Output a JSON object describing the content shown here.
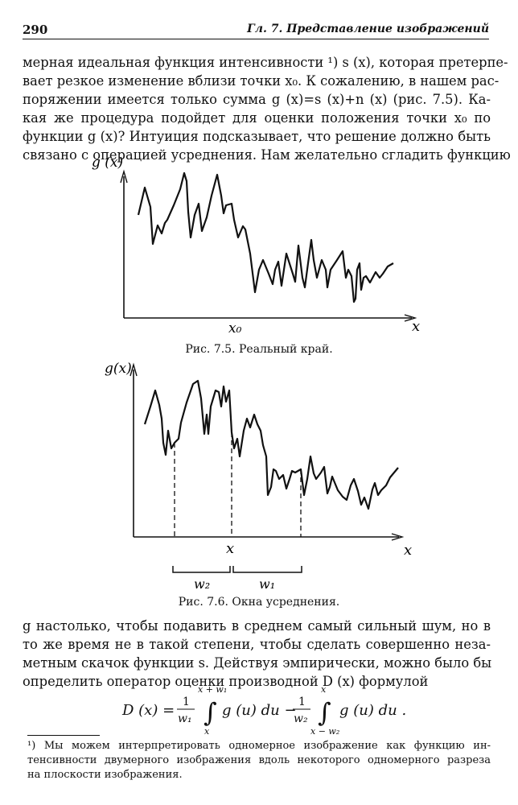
{
  "header": {
    "page_number": "290",
    "running_title": "Гл. 7. Представление изображений"
  },
  "paragraph1": [
    "мерная идеальная функция интенсивности ¹) s (x), которая претерпе-",
    "вает резкое изменение вблизи точки x₀. К сожалению, в нашем рас-",
    "поряжении имеется только сумма g (x)=s (x)+n (x) (рис. 7.5). Ка-",
    "кая же процедура подойдет для оценки положения точки x₀ по",
    "функции g (x)? Интуиция подсказывает, что решение должно быть",
    "связано с операцией усреднения. Нам желательно сгладить функцию"
  ],
  "figure75": {
    "y_label": "g (x)",
    "x_label": "x",
    "x0_label": "x₀",
    "caption": "Рис. 7.5. Реальный край."
  },
  "figure76": {
    "y_label": "g(x)",
    "x_label": "x",
    "x_mark_label": "x",
    "w2_label": "w₂",
    "w1_label": "w₁",
    "caption": "Рис. 7.6. Окна усреднения."
  },
  "paragraph2": [
    "g настолько, чтобы подавить в среднем самый сильный шум, но в",
    "то же время не в такой степени, чтобы сделать совершенно неза-",
    "метным скачок функции s. Действуя эмпирически, можно было бы",
    "определить оператор оценки производной D (x) формулой"
  ],
  "formula": {
    "lhs": "D (x) =",
    "frac1_num": "1",
    "frac1_den": "w₁",
    "int1_upper": "x + w₁",
    "int1_lower": "x",
    "integrand1": "g (u) du −",
    "frac2_num": "1",
    "frac2_den": "w₂",
    "int2_upper": "x",
    "int2_lower": "x − w₂",
    "integrand2": "g (u) du ."
  },
  "footnote": [
    "¹) Мы можем интерпретировать одномерное изображение как функцию ин-",
    "тенсивности двумерного изображения вдоль некоторого одномерного разреза",
    "на плоскости изображения."
  ]
}
